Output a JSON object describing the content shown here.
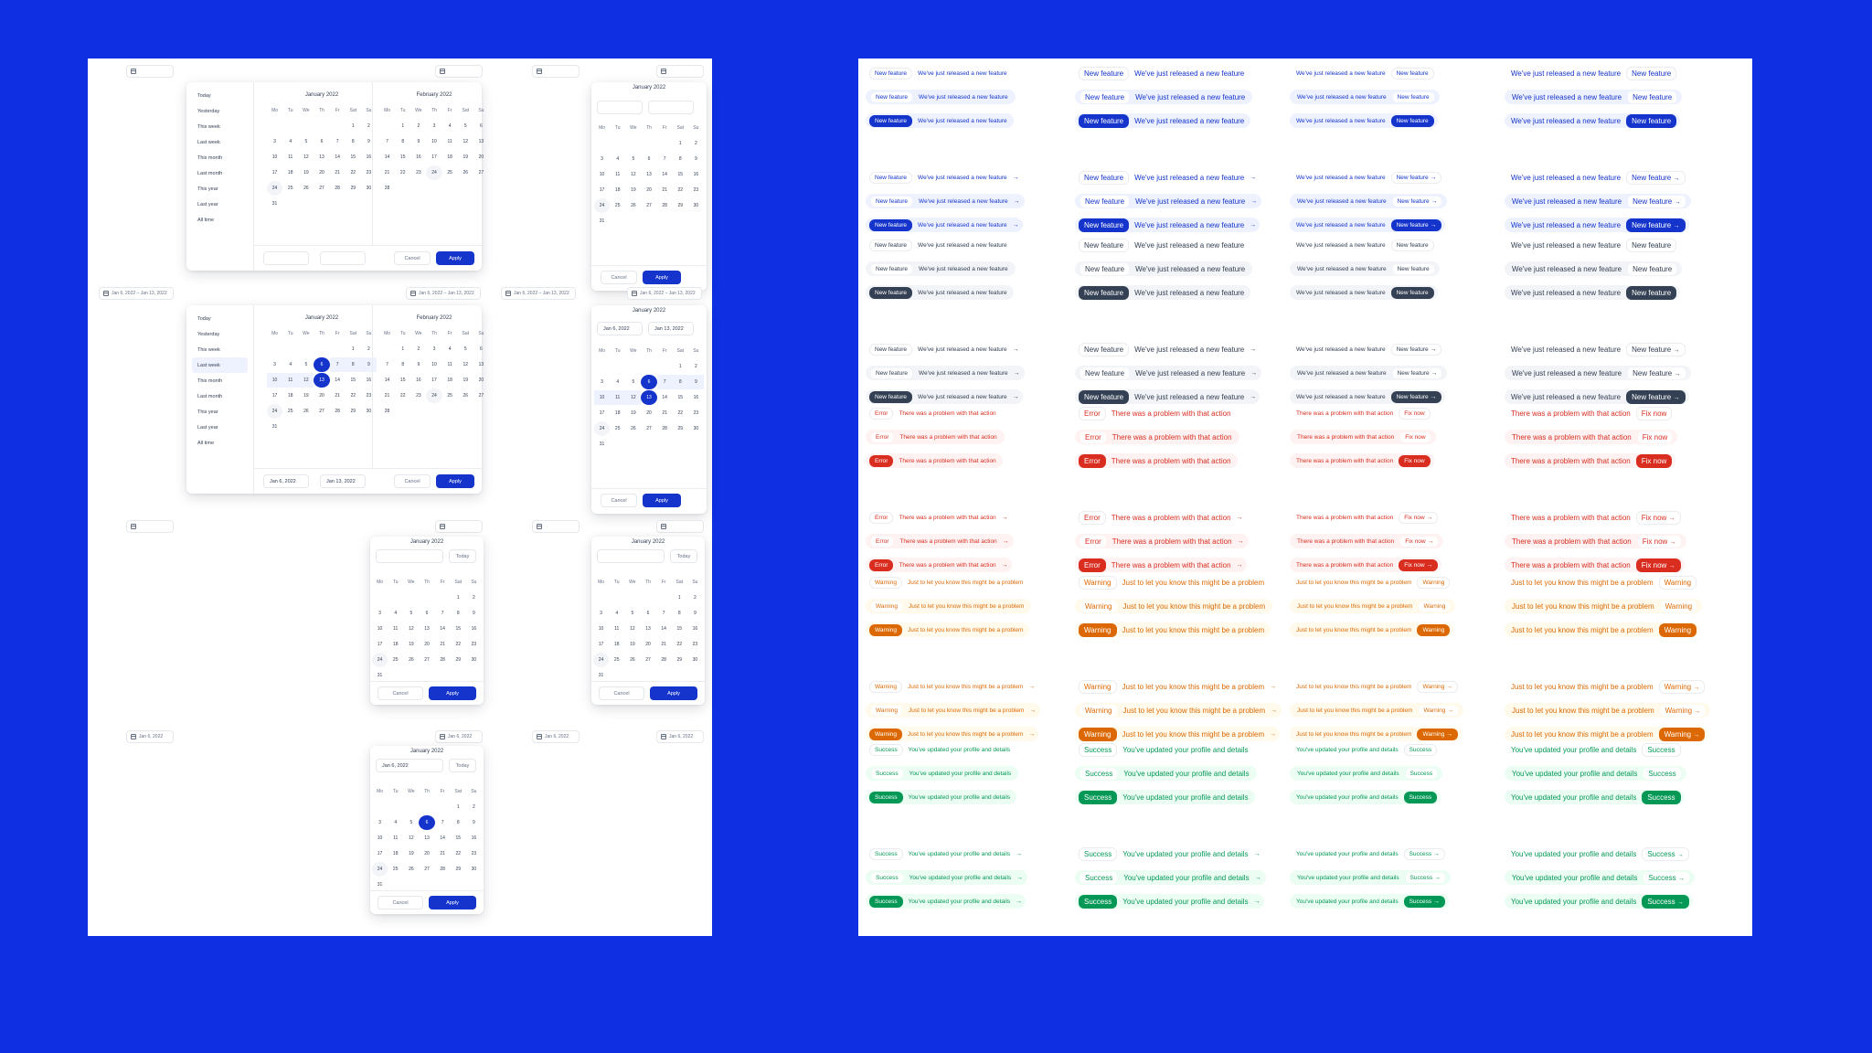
{
  "calendar": {
    "weekdays": [
      "Mo",
      "Tu",
      "We",
      "Th",
      "Fr",
      "Sat",
      "Su"
    ],
    "presets": [
      "Today",
      "Yesterday",
      "This week",
      "Last week",
      "This month",
      "Last month",
      "This year",
      "Last year",
      "All time"
    ],
    "month_jan": "January 2022",
    "month_feb": "February 2022",
    "jan_days": [
      "",
      "",
      "",
      "",
      "",
      "1",
      "2",
      "3",
      "4",
      "5",
      "6",
      "7",
      "8",
      "9",
      "10",
      "11",
      "12",
      "13",
      "14",
      "15",
      "16",
      "17",
      "18",
      "19",
      "20",
      "21",
      "22",
      "23",
      "24",
      "25",
      "26",
      "27",
      "28",
      "29",
      "30",
      "31"
    ],
    "feb_days": [
      "",
      "1",
      "2",
      "3",
      "4",
      "5",
      "6",
      "7",
      "8",
      "9",
      "10",
      "11",
      "12",
      "13",
      "14",
      "15",
      "16",
      "17",
      "18",
      "19",
      "20",
      "21",
      "22",
      "23",
      "24",
      "25",
      "26",
      "27",
      "28"
    ],
    "range_label": "Jan 6, 2022 – Jan 13, 2022",
    "start_date": "Jan 6, 2022",
    "end_date": "Jan 13, 2022",
    "single_date": "Jan 6, 2022",
    "today_button": "Today",
    "cancel": "Cancel",
    "apply": "Apply"
  },
  "badges": {
    "info": {
      "tag": "New feature",
      "msg": "We've just released a new feature",
      "color": "#1434cb",
      "light": "#eef2ff"
    },
    "gray": {
      "tag": "New feature",
      "msg": "We've just released a new feature",
      "color": "#344054",
      "light": "#f2f4f7"
    },
    "error": {
      "tag": "Error",
      "msg": "There was a problem with that action",
      "tag_right": "Fix now",
      "color": "#d92d20",
      "light": "#fef3f2"
    },
    "warning": {
      "tag": "Warning",
      "msg": "Just to let you know this might be a problem",
      "color": "#dc6803",
      "light": "#fffaeb"
    },
    "success": {
      "tag": "Success",
      "msg": "You've updated your profile and details",
      "color": "#039855",
      "light": "#ecfdf3"
    }
  }
}
